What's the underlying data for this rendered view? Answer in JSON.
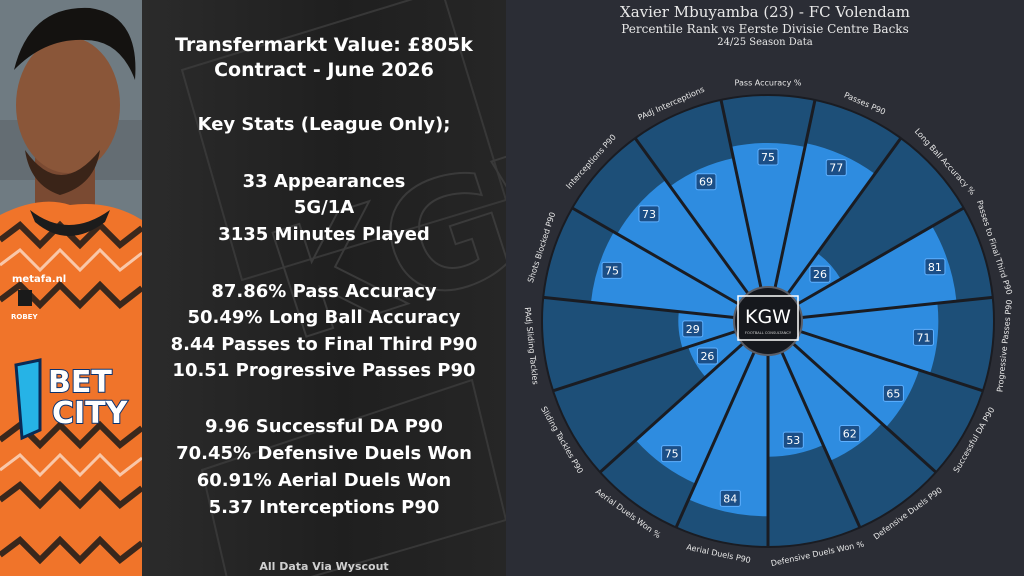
{
  "stats_panel": {
    "lines": [
      "Transfermarkt Value: £805k",
      "Contract - June 2026",
      "Key Stats (League Only);",
      "33 Appearances",
      "5G/1A",
      "3135 Minutes Played",
      "87.86% Pass Accuracy",
      "50.49% Long Ball Accuracy",
      "8.44 Passes to Final Third P90",
      "10.51 Progressive Passes P90",
      "9.96 Successful DA P90",
      "70.45% Defensive Duels Won",
      "60.91% Aerial Duels Won",
      "5.37 Interceptions P90"
    ],
    "source_note": "All Data Via Wyscout",
    "watermark": "KGW"
  },
  "photo": {
    "shirt_sponsor": "BET CITY",
    "shirt_text": "metafa.nl",
    "kit_brand": "ROBEY"
  },
  "chart_data": {
    "type": "pizza",
    "title": "Xavier Mbuyamba (23) - FC Volendam",
    "subtitle": "Percentile Rank vs Eerste Divisie Centre Backs",
    "season": "24/25 Season Data",
    "scale_max": 100,
    "center_logo": "KGW",
    "center_logo_sub": "FOOTBALL CONSULTANCY",
    "categories": [
      "Pass Accuracy %",
      "Passes P90",
      "Long Ball Accuracy %",
      "Passes to Final Third P90",
      "Progressive Passes P90",
      "Successful DA P90",
      "Defensive Duels P90",
      "Defensive Duels Won %",
      "Aerial Duels P90",
      "Aerial Duels Won %",
      "Sliding Tackles P90",
      "PAdj Sliding Tackles",
      "Shots Blocked P90",
      "Interceptions P90",
      "PAdj Interceptions"
    ],
    "values": [
      75,
      77,
      26,
      81,
      71,
      65,
      62,
      53,
      84,
      75,
      26,
      29,
      75,
      73,
      69
    ],
    "colors": {
      "background": "#2b2d35",
      "slice_background": "#1d4f78",
      "slice_value": "#2e8ce0",
      "separator": "#1a1c22",
      "label_box": "#1b4e86",
      "label_box_border": "#5fb0ff",
      "label_text": "#ffffff",
      "category_text": "#e8e8e8"
    }
  }
}
